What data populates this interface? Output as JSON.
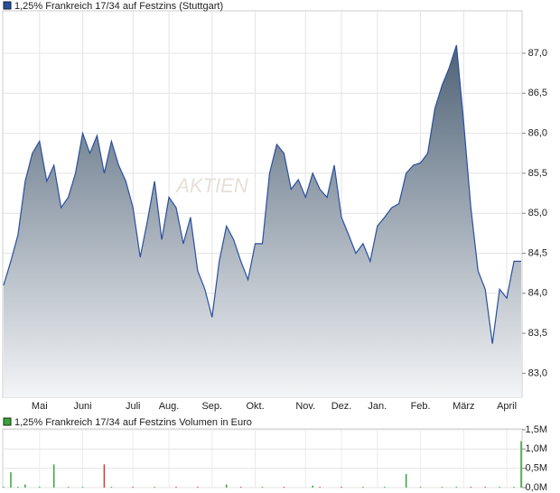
{
  "chart_data": [
    {
      "type": "area",
      "title": "1,25% Frankreich 17/34 auf Festzins (Stuttgart)",
      "watermark": "AKTIEN",
      "color": "#2a4f9e",
      "fill_top": "#4d6175",
      "fill_bottom": "#f3f4f6",
      "categories": [
        null,
        null,
        null,
        null,
        null,
        "Mai",
        null,
        null,
        null,
        null,
        null,
        "Juni",
        null,
        null,
        null,
        null,
        null,
        null,
        "Juli",
        null,
        null,
        null,
        null,
        "Aug.",
        null,
        null,
        null,
        null,
        null,
        "Sep.",
        null,
        null,
        null,
        null,
        null,
        "Okt.",
        null,
        null,
        null,
        null,
        null,
        null,
        "Nov.",
        null,
        null,
        null,
        null,
        "Dez.",
        null,
        null,
        null,
        null,
        "Jan.",
        null,
        null,
        null,
        null,
        null,
        "Feb.",
        null,
        null,
        null,
        null,
        null,
        "März",
        null,
        null,
        null,
        null,
        null,
        "April",
        null,
        null
      ],
      "values": [
        84.1,
        84.4,
        84.73,
        85.4,
        85.75,
        85.9,
        85.4,
        85.6,
        85.07,
        85.2,
        85.5,
        86.0,
        85.75,
        85.97,
        85.5,
        85.9,
        85.6,
        85.4,
        85.07,
        84.45,
        84.9,
        85.4,
        84.67,
        85.2,
        85.07,
        84.62,
        84.95,
        84.28,
        84.05,
        83.7,
        84.4,
        84.84,
        84.67,
        84.4,
        84.17,
        84.62,
        84.62,
        85.5,
        85.86,
        85.75,
        85.3,
        85.42,
        85.2,
        85.5,
        85.3,
        85.2,
        85.6,
        84.95,
        84.73,
        84.5,
        84.62,
        84.4,
        84.84,
        84.95,
        85.07,
        85.12,
        85.5,
        85.6,
        85.63,
        85.75,
        86.31,
        86.6,
        86.82,
        87.1,
        86.14,
        85.07,
        84.28,
        84.05,
        83.37,
        84.05,
        83.94,
        84.4,
        84.4
      ],
      "ylim": [
        82.7,
        87.53
      ],
      "yticks": [
        {
          "value": 83.0,
          "label": "83,0"
        },
        {
          "value": 83.5,
          "label": "83,5"
        },
        {
          "value": 84.0,
          "label": "84,0"
        },
        {
          "value": 84.5,
          "label": "84,5"
        },
        {
          "value": 85.0,
          "label": "85,0"
        },
        {
          "value": 85.5,
          "label": "85,5"
        },
        {
          "value": 86.0,
          "label": "86,0"
        },
        {
          "value": 86.5,
          "label": "86,5"
        },
        {
          "value": 87.0,
          "label": "87,0"
        }
      ],
      "grid": true
    },
    {
      "type": "bar",
      "title": "1,25% Frankreich 17/34 auf Festzins Volumen in Euro",
      "up_color": "#3aa33a",
      "down_color": "#d03a3a",
      "values": [
        0.02,
        0.4,
        0.02,
        0.08,
        0,
        0.02,
        0,
        0.6,
        0,
        0.02,
        0,
        0.02,
        0,
        0,
        0.6,
        0.02,
        0,
        0,
        0.02,
        0,
        0,
        0.02,
        0,
        0,
        0.02,
        0,
        0,
        0.02,
        0,
        0,
        0,
        0.08,
        0,
        0.02,
        0,
        0,
        0.02,
        0,
        0,
        0.02,
        0,
        0,
        0,
        0.05,
        0.02,
        0,
        0,
        0.02,
        0,
        0,
        0.02,
        0,
        0,
        0.02,
        0,
        0,
        0.35,
        0,
        0.02,
        0,
        0,
        0.02,
        0,
        0.02,
        0,
        0.02,
        0,
        0.02,
        0,
        0.02,
        0,
        0.02,
        1.2
      ],
      "ylim": [
        0,
        1.52
      ],
      "yticks": [
        {
          "value": 0,
          "label": "0,0M"
        },
        {
          "value": 0.5,
          "label": "0,5M"
        },
        {
          "value": 1.0,
          "label": "1,0M"
        },
        {
          "value": 1.5,
          "label": "1,5M"
        }
      ],
      "grid": true
    }
  ]
}
